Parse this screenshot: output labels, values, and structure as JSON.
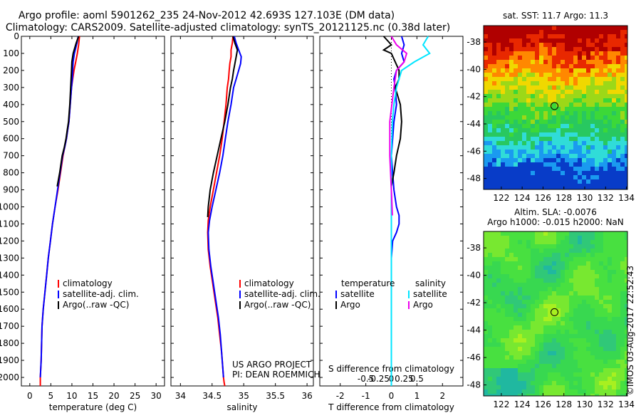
{
  "header": {
    "line1": "Argo profile: aoml 5901262_235 24-Nov-2012 42.693S 127.103E (DM data)",
    "line2": "Climatology: CARS2009. Satellite-adjusted climatology: synTS_20121125.nc (0.38d later)"
  },
  "side_label": "©IMOS 03-Aug-2017 22:52:43",
  "chart_data": [
    {
      "type": "line",
      "xlabel": "temperature (deg C)",
      "ylabel": "",
      "xlim": [
        -2,
        32
      ],
      "ylim": [
        2050,
        0
      ],
      "xticks": [
        0,
        5,
        10,
        15,
        20,
        25,
        30
      ],
      "yticks": [
        0,
        100,
        200,
        300,
        400,
        500,
        600,
        700,
        800,
        900,
        1000,
        1100,
        1200,
        1300,
        1400,
        1500,
        1600,
        1700,
        1800,
        1900,
        2000
      ],
      "legend": {
        "position": "bottom-center"
      },
      "series": [
        {
          "name": "climatology",
          "color": "#ff0000",
          "width": 2,
          "x": [
            11.8,
            11.6,
            11.3,
            10.9,
            10.5,
            10.2,
            9.9,
            9.6,
            9.3,
            9.0,
            8.7,
            8.3,
            7.9,
            7.3,
            6.7,
            6.0,
            5.4,
            4.9,
            4.4,
            4.0,
            3.6,
            3.2,
            2.9,
            2.8,
            2.7,
            2.6,
            2.5,
            2.5
          ],
          "y": [
            0,
            50,
            100,
            150,
            200,
            250,
            300,
            400,
            500,
            550,
            600,
            650,
            700,
            800,
            900,
            1000,
            1100,
            1200,
            1300,
            1400,
            1500,
            1600,
            1700,
            1800,
            1900,
            1950,
            2000,
            2050
          ]
        },
        {
          "name": "satellite-adj. clim.",
          "color": "#0000ff",
          "width": 2,
          "x": [
            11.5,
            11.2,
            10.6,
            10.3,
            10.2,
            10.1,
            9.9,
            9.6,
            9.3,
            9.0,
            8.7,
            8.3,
            7.8,
            7.2,
            6.6,
            6.0,
            5.4,
            4.9,
            4.4,
            4.0,
            3.6,
            3.2,
            2.9,
            2.8,
            2.7,
            2.6,
            2.5
          ],
          "y": [
            0,
            40,
            100,
            150,
            200,
            250,
            300,
            400,
            500,
            550,
            600,
            650,
            700,
            800,
            900,
            1000,
            1100,
            1200,
            1300,
            1400,
            1500,
            1600,
            1700,
            1800,
            1900,
            1950,
            2000
          ]
        },
        {
          "name": "Argo(..raw -QC)",
          "color": "#000000",
          "width": 2,
          "x": [
            11.6,
            11.0,
            10.3,
            10.0,
            9.9,
            9.8,
            9.7,
            9.5,
            9.2,
            8.9,
            8.6,
            8.2,
            7.7,
            7.1,
            6.5
          ],
          "y": [
            0,
            40,
            100,
            150,
            200,
            250,
            300,
            400,
            500,
            550,
            600,
            650,
            700,
            800,
            880
          ]
        }
      ]
    },
    {
      "type": "line",
      "xlabel": "salinity",
      "ylabel": "",
      "xlim": [
        33.85,
        36.1
      ],
      "ylim": [
        2050,
        0
      ],
      "xticks": [
        34,
        34.5,
        35,
        35.5,
        36
      ],
      "legend": {
        "position": "bottom-center"
      },
      "annotations": [
        "US ARGO PROJECT",
        "PI: DEAN ROEMMICH"
      ],
      "series": [
        {
          "name": "climatology",
          "color": "#ff0000",
          "width": 2,
          "x": [
            34.83,
            34.82,
            34.8,
            34.8,
            34.78,
            34.77,
            34.76,
            34.74,
            34.72,
            34.69,
            34.66,
            34.62,
            34.57,
            34.52,
            34.47,
            34.44,
            34.43,
            34.44,
            34.47,
            34.51,
            34.55,
            34.59,
            34.62,
            34.65,
            34.67,
            34.68,
            34.69,
            34.7
          ],
          "y": [
            0,
            40,
            80,
            120,
            160,
            200,
            250,
            300,
            400,
            500,
            600,
            700,
            800,
            900,
            1000,
            1080,
            1150,
            1250,
            1350,
            1450,
            1550,
            1650,
            1750,
            1850,
            1950,
            2000,
            2030,
            2050
          ]
        },
        {
          "name": "satellite-adj. clim.",
          "color": "#0000ff",
          "width": 2,
          "x": [
            34.85,
            34.88,
            34.92,
            34.96,
            34.95,
            34.92,
            34.88,
            34.84,
            34.8,
            34.75,
            34.71,
            34.67,
            34.62,
            34.56,
            34.5,
            34.46,
            34.44,
            34.45,
            34.48,
            34.52,
            34.56,
            34.6,
            34.63,
            34.65,
            34.67,
            34.68
          ],
          "y": [
            0,
            40,
            80,
            120,
            160,
            200,
            250,
            300,
            400,
            500,
            600,
            700,
            800,
            900,
            1000,
            1080,
            1150,
            1250,
            1350,
            1450,
            1550,
            1650,
            1750,
            1850,
            1950,
            2000
          ]
        },
        {
          "name": "Argo(..raw -QC)",
          "color": "#000000",
          "width": 2,
          "x": [
            34.83,
            34.86,
            34.9,
            34.88,
            34.86,
            34.84,
            34.82,
            34.79,
            34.75,
            34.7,
            34.64,
            34.58,
            34.52,
            34.47,
            34.44,
            34.43
          ],
          "y": [
            0,
            40,
            80,
            120,
            160,
            200,
            250,
            300,
            400,
            500,
            600,
            700,
            800,
            900,
            1000,
            1060
          ]
        }
      ]
    },
    {
      "type": "line",
      "xlabel": "T difference from climatology",
      "xlabel2": "S difference from climatology",
      "ylabel": "",
      "xlim": [
        -2.8,
        2.8
      ],
      "ylim": [
        2050,
        0
      ],
      "xticks": [
        -2,
        -1,
        0,
        1,
        2
      ],
      "sticks": [
        -0.5,
        -0.25,
        0,
        0.25,
        0.5
      ],
      "legend": {
        "position": "bottom",
        "temperature_title": "temperature",
        "salinity_title": "salinity"
      },
      "series": [
        {
          "name": "satellite",
          "group": "temperature",
          "color": "#0000ff",
          "width": 2,
          "x": [
            0.4,
            0.5,
            0.4,
            0.5,
            0.2,
            0.1,
            0.15,
            0.2,
            0.1,
            0.05,
            0.0,
            0.05,
            0.1,
            0.2,
            0.3,
            0.3,
            0.2,
            0.05,
            0.0
          ],
          "y": [
            0,
            50,
            100,
            150,
            200,
            250,
            300,
            400,
            500,
            600,
            700,
            800,
            900,
            1000,
            1050,
            1100,
            1150,
            1200,
            1300
          ]
        },
        {
          "name": "Argo",
          "group": "temperature",
          "color": "#000000",
          "width": 2,
          "x": [
            -0.3,
            0.0,
            -0.3,
            0.0,
            0.3,
            0.3,
            0.15,
            0.35,
            0.4,
            0.35,
            0.2,
            0.1,
            0.0
          ],
          "y": [
            0,
            50,
            80,
            100,
            200,
            250,
            300,
            400,
            500,
            600,
            700,
            800,
            880
          ]
        },
        {
          "name": "satellite",
          "group": "salinity",
          "color": "#00e5ff",
          "width": 2,
          "x": [
            0.72,
            0.62,
            0.75,
            0.45,
            0.2,
            0.1,
            0.05,
            0.02,
            0.0,
            0.0,
            0.0,
            0.0
          ],
          "y": [
            0,
            50,
            100,
            150,
            200,
            300,
            400,
            500,
            700,
            1000,
            1500,
            2050
          ]
        },
        {
          "name": "Argo",
          "group": "salinity",
          "color": "#ee00ee",
          "width": 2,
          "x": [
            0.0,
            0.1,
            0.3,
            0.25,
            0.1,
            0.05,
            -0.03,
            -0.03,
            0.0,
            0.02
          ],
          "y": [
            0,
            50,
            100,
            150,
            200,
            300,
            500,
            700,
            900,
            1050
          ]
        }
      ]
    },
    {
      "type": "heatmap",
      "title": "sat. SST: 11.7 Argo: 11.3",
      "xlim": [
        120.3,
        134.1
      ],
      "ylim": [
        -48.8,
        -36.8
      ],
      "xticks": [
        122,
        124,
        126,
        128,
        130,
        132,
        134
      ],
      "yticks": [
        -38,
        -40,
        -42,
        -44,
        -46,
        -48
      ],
      "marker": {
        "lon": 127.1,
        "lat": -42.69
      },
      "colors": [
        "#083cc8",
        "#1a9af0",
        "#30dcd8",
        "#28c860",
        "#3cd838",
        "#9cd818",
        "#f0d800",
        "#ff8800",
        "#e82800",
        "#b00000"
      ]
    },
    {
      "type": "heatmap",
      "title": "Altim. SLA: -0.0076",
      "subtitle": "Argo h1000: -0.015 h2000: NaN",
      "xlim": [
        120.3,
        134.1
      ],
      "ylim": [
        -48.8,
        -36.8
      ],
      "xticks": [
        122,
        124,
        126,
        128,
        130,
        132,
        134
      ],
      "yticks": [
        -38,
        -40,
        -42,
        -44,
        -46,
        -48
      ],
      "marker": {
        "lon": 127.1,
        "lat": -42.69
      },
      "colors": [
        "#20b8a0",
        "#30c878",
        "#38d850",
        "#48e040",
        "#78e830",
        "#a8f020",
        "#d8f818"
      ]
    }
  ]
}
